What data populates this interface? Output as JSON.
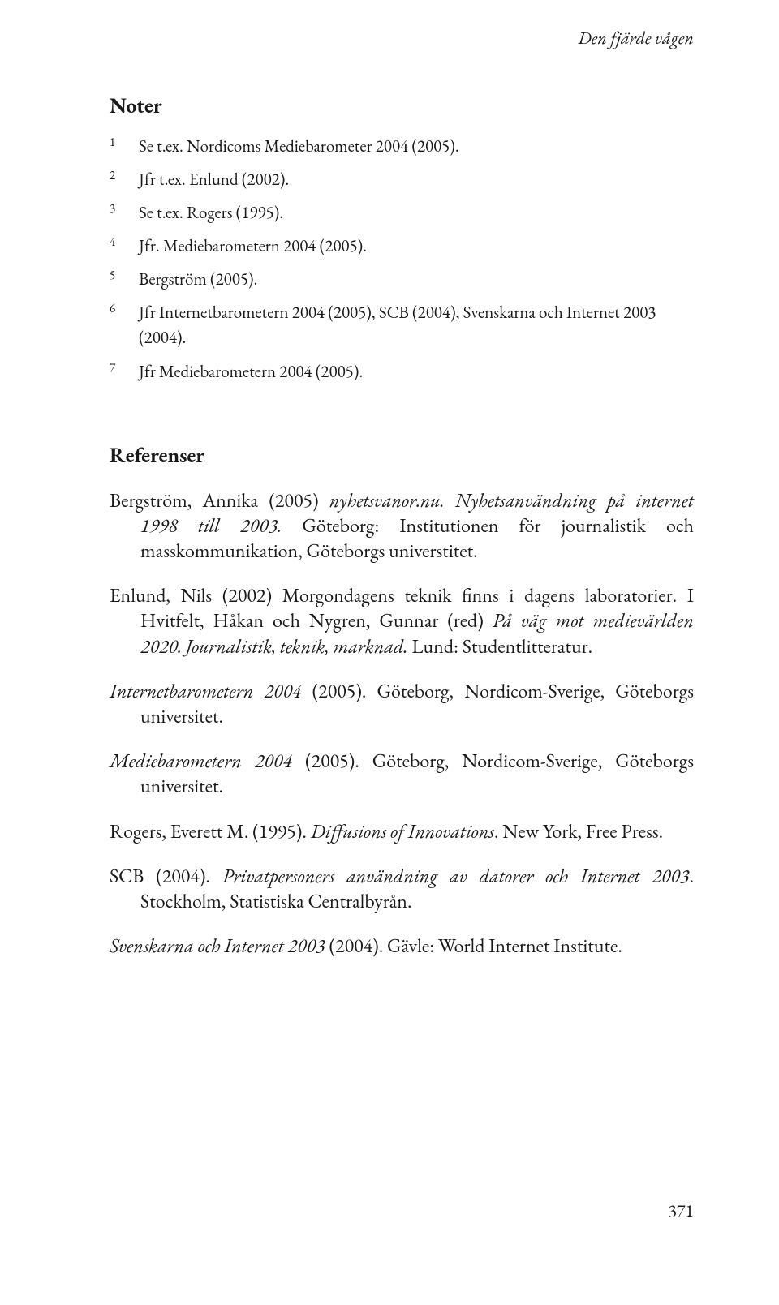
{
  "running_head": "Den fjärde vågen",
  "notes_heading": "Noter",
  "notes": [
    {
      "n": "1",
      "text": "Se t.ex. Nordicoms Mediebarometer 2004 (2005)."
    },
    {
      "n": "2",
      "text": "Jfr t.ex. Enlund (2002)."
    },
    {
      "n": "3",
      "text": "Se t.ex. Rogers (1995)."
    },
    {
      "n": "4",
      "text": "Jfr. Mediebarometern 2004 (2005)."
    },
    {
      "n": "5",
      "text": "Bergström (2005)."
    },
    {
      "n": "6",
      "text": "Jfr Internetbarometern 2004 (2005), SCB (2004), Svenskarna och Internet 2003 (2004)."
    },
    {
      "n": "7",
      "text": "Jfr Mediebarometern 2004 (2005)."
    }
  ],
  "refs_heading": "Referenser",
  "references": [
    {
      "html": "Bergström, Annika (2005) <em>nyhetsvanor.nu. Nyhetsanvändning på internet 1998 till 2003.</em> Göteborg: Institutionen för journalistik och masskommunikation, Göteborgs universtitet."
    },
    {
      "html": "Enlund, Nils (2002) Morgondagens teknik finns i dagens laboratorier. I Hvitfelt, Håkan och Nygren, Gunnar (red) <em>På väg mot medievärlden 2020. Journalistik, teknik, marknad.</em> Lund: Studentlitteratur."
    },
    {
      "html": "<em>Internetbarometern 2004</em> (2005). Göteborg, Nordicom-Sverige, Göteborgs universitet."
    },
    {
      "html": "<em>Mediebarometern 2004</em> (2005). Göteborg, Nordicom-Sverige, Göteborgs universitet."
    },
    {
      "html": "Rogers, Everett M. (1995). <em>Diffusions of Innovations</em>. New York, Free Press."
    },
    {
      "html": "SCB (2004). <em>Privatpersoners användning av datorer och Internet 2003</em>. Stockholm, Statistiska Centralbyrån."
    },
    {
      "html": "<em>Svenskarna och Internet 2003</em> (2004). Gävle: World Internet Institute."
    }
  ],
  "page_number": "371"
}
